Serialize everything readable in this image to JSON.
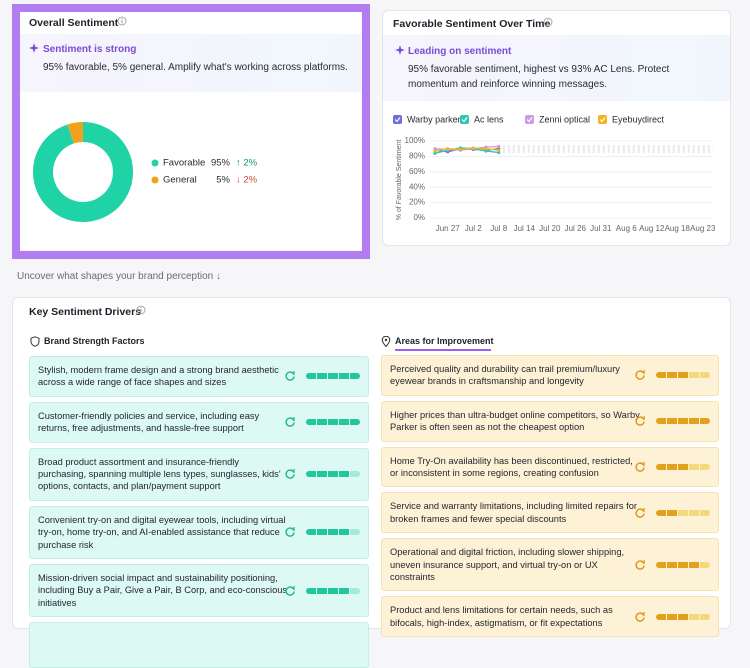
{
  "chart_data": [
    {
      "type": "pie",
      "title": "Overall Sentiment",
      "insight": {
        "title": "Sentiment is strong",
        "text": "95% favorable, 5% general. Amplify what's working across platforms."
      },
      "categories": [
        "Favorable",
        "General"
      ],
      "values": [
        95,
        5
      ],
      "value_labels": [
        "95%",
        "5%"
      ],
      "changes": [
        "↑ 2%",
        "↓ 2%"
      ],
      "change_colors": [
        "#1a9a5f",
        "#d9473b"
      ],
      "colors": [
        "#1fd3a7",
        "#f0a21c"
      ]
    },
    {
      "type": "line",
      "title": "Favorable Sentiment Over Time",
      "insight": {
        "title": "Leading on sentiment",
        "text": "95% favorable sentiment, highest vs 93% AC Lens. Protect momentum and reinforce winning messages."
      },
      "y_label": "% of Favorable Sentiment",
      "categories": [
        null,
        "Jun 27",
        null,
        "Jul 2",
        null,
        "Jul 8",
        null,
        "Jul 14",
        null,
        "Jul 20",
        null,
        "Jul 26",
        null,
        "Jul 31",
        null,
        "Aug 6",
        null,
        "Aug 12",
        null,
        "Aug 18",
        null,
        "Aug 23"
      ],
      "series": [
        {
          "name": "Warby parker",
          "color": "#6c6fd6",
          "values": [
            88,
            86,
            90,
            89,
            88,
            90,
            null,
            null,
            null,
            null,
            null,
            null,
            null,
            null,
            null,
            null,
            null,
            null,
            null,
            null,
            null,
            null
          ]
        },
        {
          "name": "Ac lens",
          "color": "#2cc8b3",
          "values": [
            84,
            88,
            91,
            90,
            87,
            85,
            null,
            null,
            null,
            null,
            null,
            null,
            null,
            null,
            null,
            null,
            null,
            null,
            null,
            null,
            null,
            null
          ]
        },
        {
          "name": "Zenni optical",
          "color": "#c79be9",
          "values": [
            90,
            89,
            88,
            90,
            92,
            93,
            null,
            null,
            null,
            null,
            null,
            null,
            null,
            null,
            null,
            null,
            null,
            null,
            null,
            null,
            null,
            null
          ]
        },
        {
          "name": "Eyebuydirect",
          "color": "#f2b51d",
          "values": [
            87,
            90,
            89,
            91,
            90,
            88,
            null,
            null,
            null,
            null,
            null,
            null,
            null,
            null,
            null,
            null,
            null,
            null,
            null,
            null,
            null,
            null
          ]
        }
      ],
      "ylim": [
        0,
        100
      ],
      "yticks": [
        {
          "value": 0,
          "label": "0%"
        },
        {
          "value": 20,
          "label": "20%"
        },
        {
          "value": 40,
          "label": "40%"
        },
        {
          "value": 60,
          "label": "60%"
        },
        {
          "value": 80,
          "label": "80%"
        },
        {
          "value": 100,
          "label": "100%"
        }
      ],
      "grid": true
    }
  ],
  "section_hint": "Uncover what shapes your brand perception ↓",
  "drivers": {
    "title": "Key Sentiment Drivers",
    "strengths": {
      "title": "Brand Strength Factors",
      "items": [
        {
          "text": "Stylish, modern frame design and a strong brand aesthetic across a wide range of face shapes and sizes",
          "score": 5
        },
        {
          "text": "Customer-friendly policies and service, including easy returns, free adjustments, and hassle-free support",
          "score": 5
        },
        {
          "text": "Broad product assortment and insurance-friendly purchasing, spanning multiple lens types, sunglasses, kids' options, contacts, and plan/payment support",
          "score": 4
        },
        {
          "text": "Convenient try-on and digital eyewear tools, including virtual try-on, home try-on, and AI-enabled assistance that reduce purchase risk",
          "score": 4
        },
        {
          "text": "Mission-driven social impact and sustainability positioning, including Buy a Pair, Give a Pair, B Corp, and eco-conscious initiatives",
          "score": 4
        }
      ]
    },
    "improvements": {
      "title": "Areas for Improvement",
      "items": [
        {
          "text": "Perceived quality and durability can trail premium/luxury eyewear brands in craftsmanship and longevity",
          "score": 3
        },
        {
          "text": "Higher prices than ultra-budget online competitors, so Warby Parker is often seen as not the cheapest option",
          "score": 5
        },
        {
          "text": "Home Try-On availability has been discontinued, restricted, or inconsistent in some regions, creating confusion",
          "score": 3
        },
        {
          "text": "Service and warranty limitations, including limited repairs for broken frames and fewer special discounts",
          "score": 2
        },
        {
          "text": "Operational and digital friction, including slower shipping, uneven insurance support, and virtual try-on or UX constraints",
          "score": 4
        },
        {
          "text": "Product and lens limitations for certain needs, such as bifocals, high-index, astigmatism, or fit expectations",
          "score": 3
        }
      ]
    }
  }
}
